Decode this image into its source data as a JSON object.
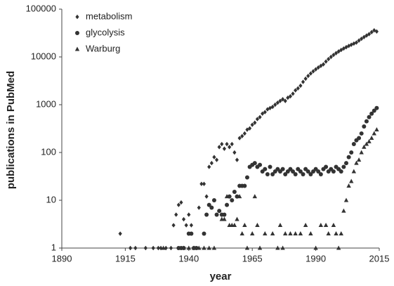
{
  "chart_data": {
    "type": "scatter",
    "x_label": "year",
    "y_label": "publications in PubMed",
    "log_y": true,
    "legend": "top-left",
    "xlim": [
      1890,
      2015
    ],
    "xticks": [
      1890,
      1915,
      1940,
      1965,
      1990,
      2015
    ],
    "ylim": [
      1,
      100000
    ],
    "yticks": [
      1,
      10,
      100,
      1000,
      10000,
      100000
    ],
    "series": [
      {
        "name": "metabolism",
        "color": "#333333",
        "marker": "diamond",
        "x": [
          1913,
          1917,
          1919,
          1923,
          1926,
          1928,
          1929,
          1931,
          1933,
          1934,
          1935,
          1936,
          1937,
          1938,
          1939,
          1940,
          1941,
          1942,
          1944,
          1945,
          1946,
          1947,
          1948,
          1949,
          1950,
          1951,
          1952,
          1953,
          1954,
          1955,
          1956,
          1957,
          1958,
          1959,
          1960,
          1961,
          1962,
          1963,
          1964,
          1965,
          1966,
          1967,
          1968,
          1969,
          1970,
          1971,
          1972,
          1973,
          1974,
          1975,
          1976,
          1977,
          1978,
          1979,
          1980,
          1981,
          1982,
          1983,
          1984,
          1985,
          1986,
          1987,
          1988,
          1989,
          1990,
          1991,
          1992,
          1993,
          1994,
          1995,
          1996,
          1997,
          1998,
          1999,
          2000,
          2001,
          2002,
          2003,
          2004,
          2005,
          2006,
          2007,
          2008,
          2009,
          2010,
          2011,
          2012,
          2013,
          2014
        ],
        "values": [
          2,
          1,
          1,
          1,
          1,
          1,
          1,
          1,
          1,
          3,
          5,
          8,
          9,
          4,
          3,
          5,
          3,
          1,
          7,
          22,
          22,
          12,
          50,
          60,
          80,
          70,
          130,
          150,
          120,
          150,
          130,
          150,
          100,
          70,
          200,
          220,
          250,
          300,
          320,
          380,
          420,
          500,
          550,
          650,
          700,
          800,
          850,
          900,
          1000,
          1100,
          1200,
          1300,
          1200,
          1400,
          1500,
          1700,
          2000,
          2200,
          2500,
          3000,
          3500,
          4000,
          4500,
          5000,
          5500,
          6000,
          6500,
          7000,
          8000,
          9000,
          10000,
          11000,
          12000,
          13000,
          14000,
          15000,
          16000,
          17000,
          18000,
          19000,
          20000,
          22000,
          24000,
          26000,
          28000,
          30000,
          33000,
          36000,
          34000
        ]
      },
      {
        "name": "glycolysis",
        "color": "#333333",
        "marker": "circle",
        "x": [
          1936,
          1937,
          1938,
          1940,
          1941,
          1942,
          1943,
          1946,
          1947,
          1948,
          1949,
          1950,
          1951,
          1952,
          1953,
          1954,
          1955,
          1956,
          1957,
          1958,
          1959,
          1960,
          1961,
          1962,
          1963,
          1964,
          1965,
          1966,
          1967,
          1968,
          1969,
          1970,
          1971,
          1972,
          1973,
          1974,
          1975,
          1976,
          1977,
          1978,
          1979,
          1980,
          1981,
          1982,
          1983,
          1984,
          1985,
          1986,
          1987,
          1988,
          1989,
          1990,
          1991,
          1992,
          1993,
          1994,
          1995,
          1996,
          1997,
          1998,
          1999,
          2000,
          2001,
          2002,
          2003,
          2004,
          2005,
          2006,
          2007,
          2008,
          2009,
          2010,
          2011,
          2012,
          2013,
          2014
        ],
        "values": [
          1,
          1,
          1,
          2,
          2,
          1,
          1,
          2,
          5,
          8,
          7,
          10,
          5,
          6,
          5,
          5,
          8,
          12,
          10,
          15,
          12,
          20,
          20,
          20,
          30,
          50,
          55,
          60,
          50,
          55,
          40,
          45,
          35,
          50,
          35,
          40,
          45,
          40,
          45,
          35,
          40,
          45,
          40,
          35,
          45,
          40,
          35,
          45,
          40,
          35,
          40,
          45,
          40,
          35,
          45,
          50,
          40,
          45,
          40,
          50,
          45,
          40,
          50,
          60,
          80,
          100,
          150,
          180,
          200,
          250,
          350,
          450,
          550,
          650,
          750,
          850
        ]
      },
      {
        "name": "Warburg",
        "color": "#333333",
        "marker": "triangle",
        "x": [
          1930,
          1938,
          1940,
          1942,
          1944,
          1946,
          1948,
          1950,
          1953,
          1954,
          1955,
          1956,
          1957,
          1958,
          1959,
          1960,
          1961,
          1962,
          1963,
          1965,
          1966,
          1967,
          1968,
          1970,
          1973,
          1975,
          1976,
          1977,
          1978,
          1980,
          1982,
          1984,
          1986,
          1988,
          1990,
          1992,
          1994,
          1995,
          1997,
          1998,
          1999,
          2000,
          2001,
          2002,
          2003,
          2004,
          2005,
          2006,
          2007,
          2008,
          2009,
          2010,
          2011,
          2012,
          2013,
          2014
        ],
        "values": [
          1,
          1,
          1,
          1,
          1,
          1,
          1,
          1,
          4,
          4,
          12,
          3,
          3,
          3,
          4,
          12,
          2,
          3,
          1,
          2,
          12,
          3,
          1,
          2,
          2,
          1,
          3,
          1,
          2,
          2,
          2,
          2,
          3,
          2,
          1,
          3,
          3,
          2,
          3,
          2,
          1,
          2,
          6,
          10,
          20,
          25,
          40,
          60,
          70,
          100,
          130,
          150,
          170,
          200,
          250,
          300
        ]
      }
    ]
  }
}
